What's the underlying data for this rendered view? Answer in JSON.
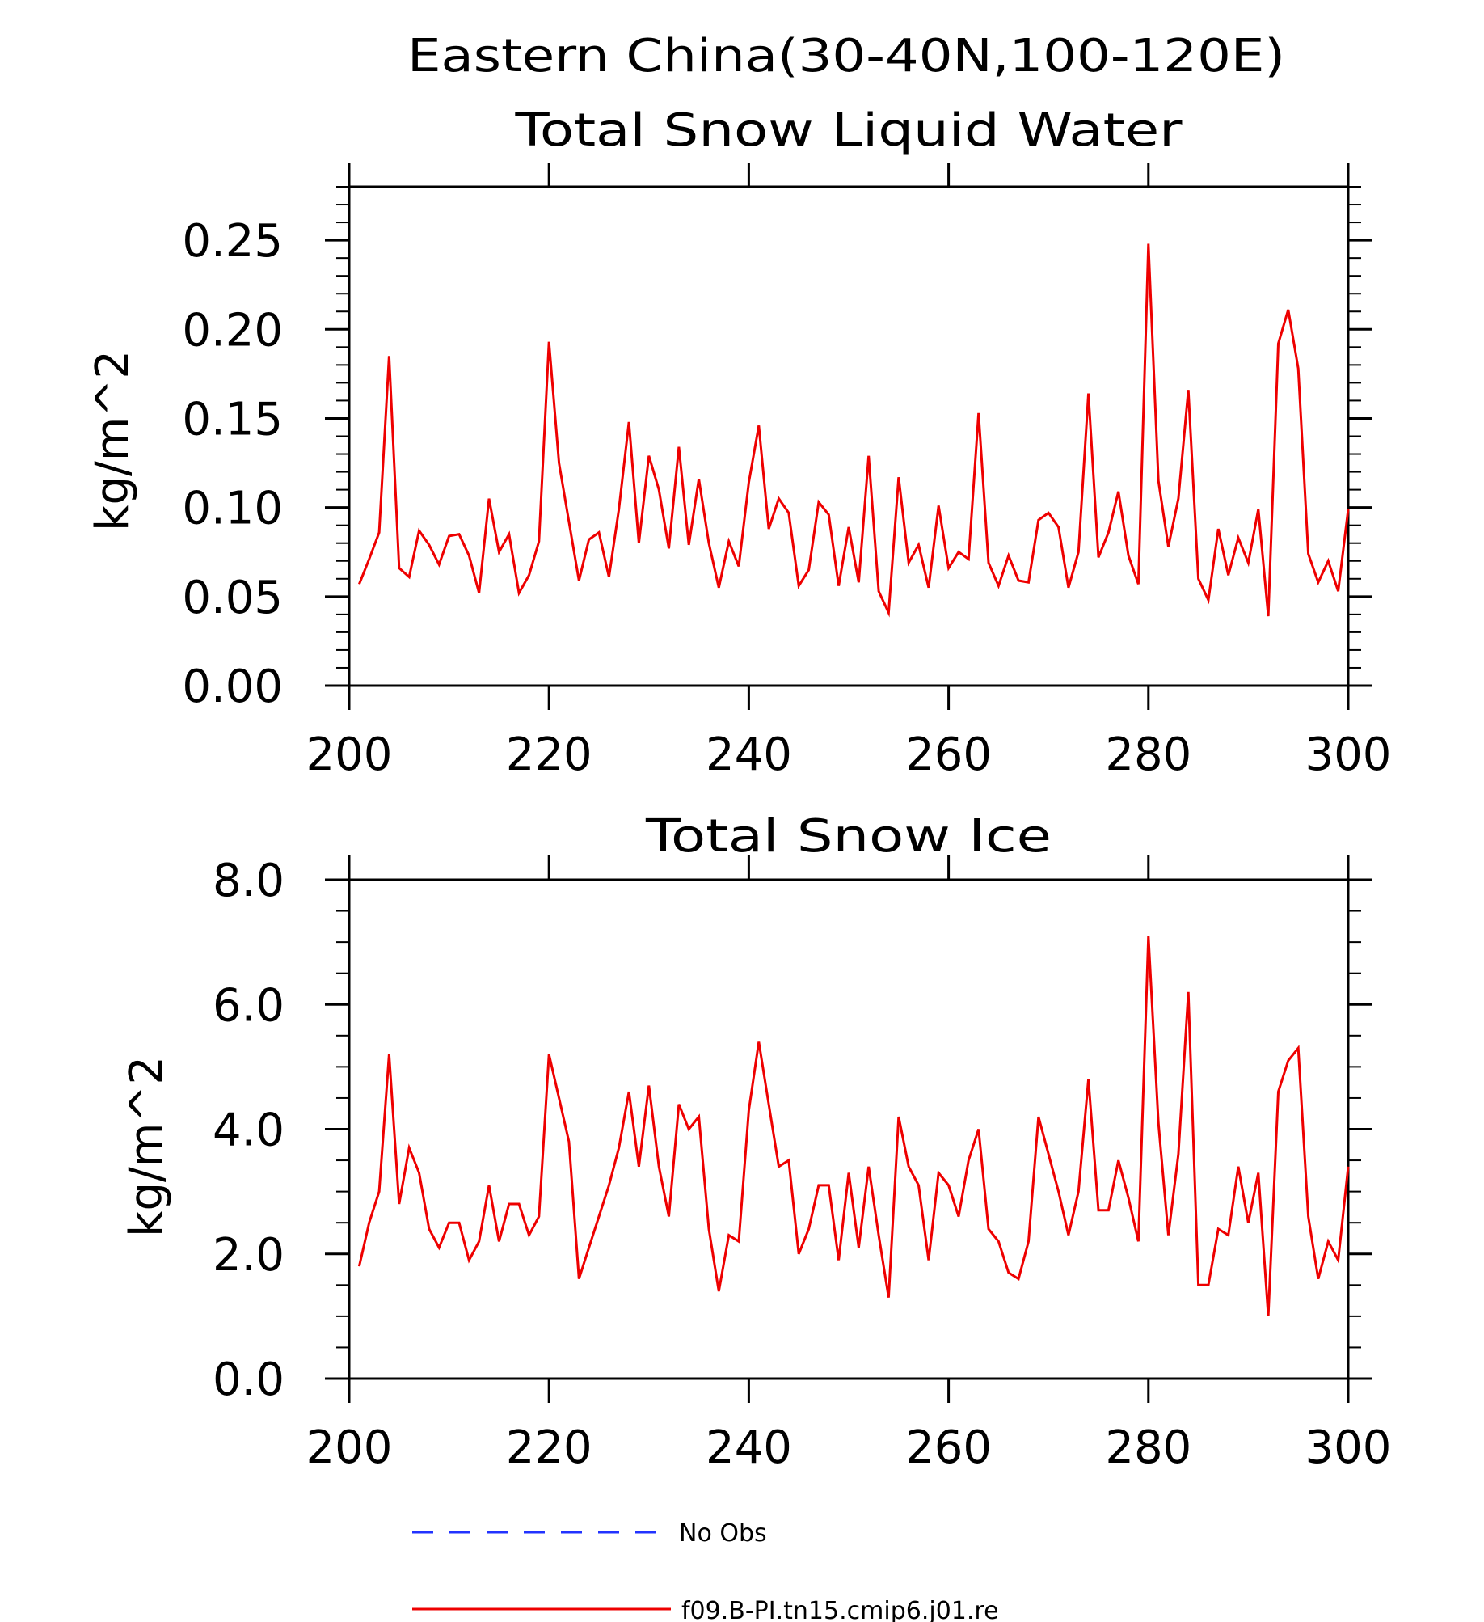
{
  "figure_title": "Eastern China(30-40N,100-120E)",
  "legend": [
    {
      "label": "No Obs",
      "color": "#2233ff",
      "style": "dashed"
    },
    {
      "label": "f09.B-PI.tn15.cmip6.j01.re",
      "color": "#ee0000",
      "style": "solid"
    }
  ],
  "chart_data": [
    {
      "type": "line",
      "title": "Total Snow Liquid Water",
      "xlabel": "",
      "ylabel": "kg/m^2",
      "xlim": [
        200,
        300
      ],
      "ylim": [
        0,
        0.28
      ],
      "xticks": [
        200,
        220,
        240,
        260,
        280,
        300
      ],
      "xtick_labels": [
        "200",
        "220",
        "240",
        "260",
        "280",
        "300"
      ],
      "yticks": [
        0,
        0.05,
        0.1,
        0.15,
        0.2,
        0.25
      ],
      "ytick_labels": [
        "0.00",
        "0.05",
        "0.10",
        "0.15",
        "0.20",
        "0.25"
      ],
      "yminor_step": 0.01,
      "xminor_step": 10,
      "grid": false,
      "series": [
        {
          "name": "f09.B-PI.tn15.cmip6.j01.re",
          "color": "#ee0000",
          "x_start": 201,
          "x_step": 1,
          "values": [
            0.057,
            0.071,
            0.086,
            0.185,
            0.066,
            0.061,
            0.087,
            0.079,
            0.068,
            0.084,
            0.085,
            0.073,
            0.052,
            0.105,
            0.075,
            0.085,
            0.052,
            0.062,
            0.081,
            0.193,
            0.125,
            0.092,
            0.059,
            0.082,
            0.086,
            0.061,
            0.099,
            0.148,
            0.08,
            0.129,
            0.11,
            0.077,
            0.134,
            0.079,
            0.116,
            0.08,
            0.055,
            0.081,
            0.067,
            0.114,
            0.146,
            0.088,
            0.105,
            0.097,
            0.056,
            0.065,
            0.103,
            0.096,
            0.056,
            0.089,
            0.058,
            0.129,
            0.053,
            0.041,
            0.117,
            0.069,
            0.079,
            0.055,
            0.101,
            0.066,
            0.075,
            0.071,
            0.153,
            0.069,
            0.056,
            0.073,
            0.059,
            0.058,
            0.093,
            0.097,
            0.089,
            0.055,
            0.075,
            0.164,
            0.072,
            0.086,
            0.109,
            0.073,
            0.057,
            0.248,
            0.115,
            0.078,
            0.105,
            0.166,
            0.06,
            0.048,
            0.088,
            0.062,
            0.083,
            0.069,
            0.099,
            0.039,
            0.192,
            0.211,
            0.178,
            0.074,
            0.058,
            0.07,
            0.053,
            0.099
          ]
        }
      ]
    },
    {
      "type": "line",
      "title": "Total Snow Ice",
      "xlabel": "",
      "ylabel": "kg/m^2",
      "xlim": [
        200,
        300
      ],
      "ylim": [
        0,
        8.0
      ],
      "xticks": [
        200,
        220,
        240,
        260,
        280,
        300
      ],
      "xtick_labels": [
        "200",
        "220",
        "240",
        "260",
        "280",
        "300"
      ],
      "yticks": [
        0,
        2.0,
        4.0,
        6.0,
        8.0
      ],
      "ytick_labels": [
        "0.0",
        "2.0",
        "4.0",
        "6.0",
        "8.0"
      ],
      "yminor_step": 0.5,
      "xminor_step": 10,
      "grid": false,
      "series": [
        {
          "name": "f09.B-PI.tn15.cmip6.j01.re",
          "color": "#ee0000",
          "x_start": 201,
          "x_step": 1,
          "values": [
            1.8,
            2.5,
            3.0,
            5.2,
            2.8,
            3.7,
            3.3,
            2.4,
            2.1,
            2.5,
            2.5,
            1.9,
            2.2,
            3.1,
            2.2,
            2.8,
            2.8,
            2.3,
            2.6,
            5.2,
            4.5,
            3.8,
            1.6,
            2.1,
            2.6,
            3.1,
            3.7,
            4.6,
            3.4,
            4.7,
            3.4,
            2.6,
            4.4,
            4.0,
            4.2,
            2.4,
            1.4,
            2.3,
            2.2,
            4.3,
            5.4,
            4.4,
            3.4,
            3.5,
            2.0,
            2.4,
            3.1,
            3.1,
            1.9,
            3.3,
            2.1,
            3.4,
            2.3,
            1.3,
            4.2,
            3.4,
            3.1,
            1.9,
            3.3,
            3.1,
            2.6,
            3.5,
            4.0,
            2.4,
            2.2,
            1.7,
            1.6,
            2.2,
            4.2,
            3.6,
            3.0,
            2.3,
            3.0,
            4.8,
            2.7,
            2.7,
            3.5,
            2.9,
            2.2,
            7.1,
            4.1,
            2.3,
            3.6,
            6.2,
            1.5,
            1.5,
            2.4,
            2.3,
            3.4,
            2.5,
            3.3,
            1.0,
            4.6,
            5.1,
            5.3,
            2.6,
            1.6,
            2.2,
            1.9,
            3.4
          ]
        }
      ]
    }
  ]
}
